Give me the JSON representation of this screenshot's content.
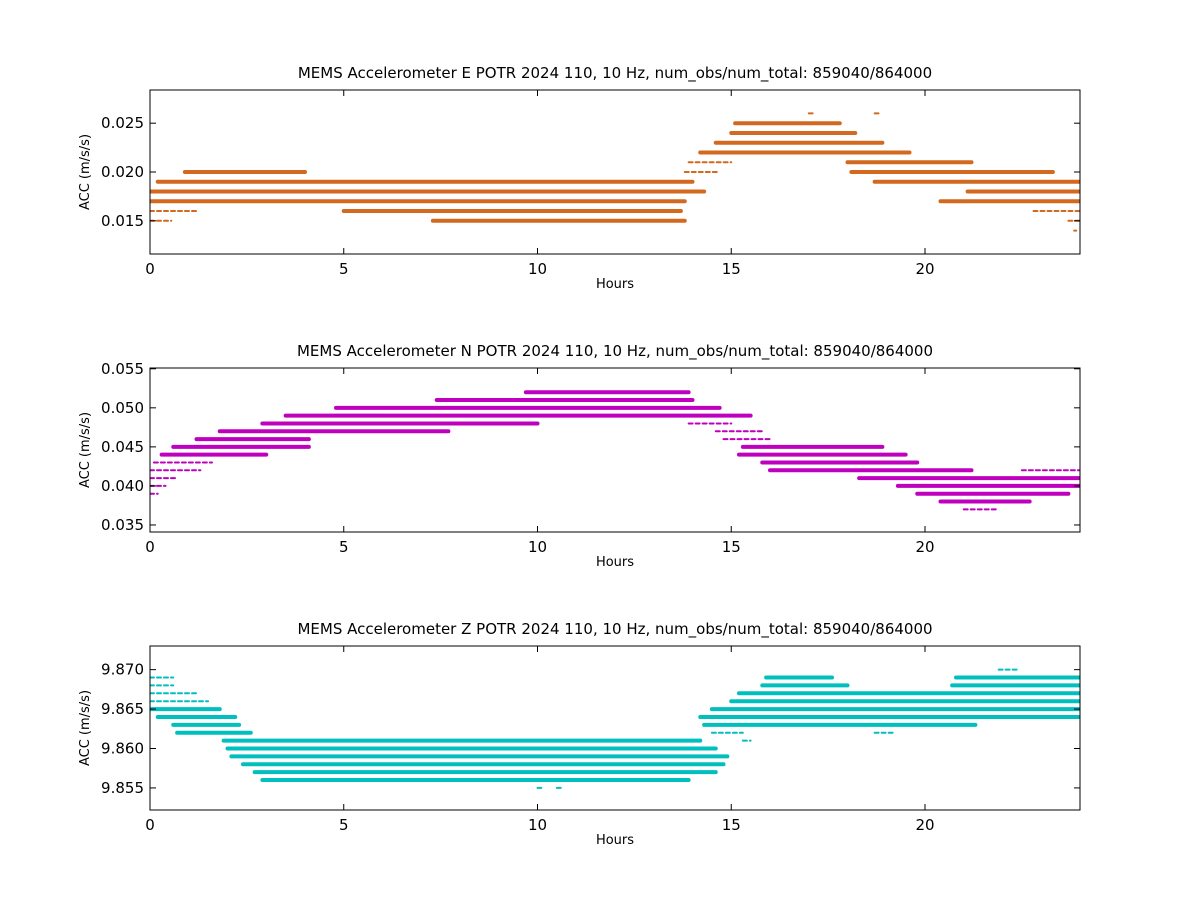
{
  "chart_data": [
    {
      "type": "scatter",
      "title": "MEMS Accelerometer E POTR 2024 110, 10 Hz, num_obs/num_total: 859040/864000",
      "xlabel": "Hours",
      "ylabel": "ACC (m/s/s)",
      "xlim": [
        0,
        24
      ],
      "ylim": [
        0.0116,
        0.0284
      ],
      "xticks": [
        0,
        5,
        10,
        15,
        20
      ],
      "xtick_labels": [
        "0",
        "5",
        "10",
        "15",
        "20"
      ],
      "yticks": [
        0.015,
        0.02,
        0.025
      ],
      "ytick_labels": [
        "0.015",
        "0.020",
        "0.025"
      ],
      "color": "#d2691e",
      "grid": false,
      "bands": [
        {
          "y": 0.014,
          "segments": [
            [
              23.85,
              23.9
            ]
          ]
        },
        {
          "y": 0.015,
          "segments": [
            [
              0,
              0.55
            ],
            [
              7.3,
              13.8
            ],
            [
              23.7,
              24
            ]
          ]
        },
        {
          "y": 0.016,
          "segments": [
            [
              0,
              1.2
            ],
            [
              5,
              13.7
            ],
            [
              22.8,
              24
            ]
          ]
        },
        {
          "y": 0.017,
          "segments": [
            [
              0,
              13.8
            ],
            [
              20.4,
              24
            ]
          ]
        },
        {
          "y": 0.018,
          "segments": [
            [
              0,
              14.3
            ],
            [
              21.1,
              24
            ]
          ]
        },
        {
          "y": 0.019,
          "segments": [
            [
              0.2,
              14.0
            ],
            [
              18.7,
              24
            ]
          ]
        },
        {
          "y": 0.02,
          "segments": [
            [
              0.9,
              4.0
            ],
            [
              13.8,
              14.7
            ],
            [
              18.1,
              23.3
            ]
          ]
        },
        {
          "y": 0.021,
          "segments": [
            [
              13.9,
              15.0
            ],
            [
              18.0,
              21.2
            ]
          ]
        },
        {
          "y": 0.022,
          "segments": [
            [
              14.2,
              19.6
            ]
          ]
        },
        {
          "y": 0.023,
          "segments": [
            [
              14.6,
              18.9
            ]
          ]
        },
        {
          "y": 0.024,
          "segments": [
            [
              15.0,
              18.2
            ]
          ]
        },
        {
          "y": 0.025,
          "segments": [
            [
              15.1,
              17.8
            ]
          ]
        },
        {
          "y": 0.026,
          "segments": [
            [
              17.0,
              17.1
            ],
            [
              18.7,
              18.8
            ]
          ]
        }
      ]
    },
    {
      "type": "scatter",
      "title": "MEMS Accelerometer N POTR 2024 110, 10 Hz, num_obs/num_total: 859040/864000",
      "xlabel": "Hours",
      "ylabel": "ACC (m/s/s)",
      "xlim": [
        0,
        24
      ],
      "ylim": [
        0.0341,
        0.0551
      ],
      "xticks": [
        0,
        5,
        10,
        15,
        20
      ],
      "xtick_labels": [
        "0",
        "5",
        "10",
        "15",
        "20"
      ],
      "yticks": [
        0.035,
        0.04,
        0.045,
        0.05,
        0.055
      ],
      "ytick_labels": [
        "0.035",
        "0.040",
        "0.045",
        "0.050",
        "0.055"
      ],
      "color": "#bf00bf",
      "grid": false,
      "bands": [
        {
          "y": 0.037,
          "segments": [
            [
              21.0,
              21.9
            ]
          ]
        },
        {
          "y": 0.038,
          "segments": [
            [
              20.4,
              22.7
            ]
          ]
        },
        {
          "y": 0.039,
          "segments": [
            [
              0,
              0.2
            ],
            [
              19.8,
              23.7
            ]
          ]
        },
        {
          "y": 0.04,
          "segments": [
            [
              0,
              0.4
            ],
            [
              19.3,
              24
            ]
          ]
        },
        {
          "y": 0.041,
          "segments": [
            [
              0,
              0.7
            ],
            [
              18.3,
              24
            ]
          ]
        },
        {
          "y": 0.042,
          "segments": [
            [
              0,
              1.3
            ],
            [
              16.0,
              21.2
            ],
            [
              22.5,
              24
            ]
          ]
        },
        {
          "y": 0.043,
          "segments": [
            [
              0.1,
              1.6
            ],
            [
              15.8,
              19.8
            ]
          ]
        },
        {
          "y": 0.044,
          "segments": [
            [
              0.3,
              3.0
            ],
            [
              15.2,
              19.5
            ]
          ]
        },
        {
          "y": 0.045,
          "segments": [
            [
              0.6,
              4.1
            ],
            [
              15.3,
              18.9
            ]
          ]
        },
        {
          "y": 0.046,
          "segments": [
            [
              1.2,
              4.1
            ],
            [
              14.8,
              16.0
            ]
          ]
        },
        {
          "y": 0.047,
          "segments": [
            [
              1.8,
              7.7
            ],
            [
              14.6,
              15.8
            ]
          ]
        },
        {
          "y": 0.048,
          "segments": [
            [
              2.9,
              10.0
            ],
            [
              13.9,
              15.0
            ]
          ]
        },
        {
          "y": 0.049,
          "segments": [
            [
              3.5,
              15.5
            ]
          ]
        },
        {
          "y": 0.05,
          "segments": [
            [
              4.8,
              14.7
            ]
          ]
        },
        {
          "y": 0.051,
          "segments": [
            [
              7.4,
              14.0
            ]
          ]
        },
        {
          "y": 0.052,
          "segments": [
            [
              9.7,
              13.9
            ]
          ]
        }
      ]
    },
    {
      "type": "scatter",
      "title": "MEMS Accelerometer Z POTR 2024 110, 10 Hz, num_obs/num_total: 859040/864000",
      "xlabel": "Hours",
      "ylabel": "ACC (m/s/s)",
      "xlim": [
        0,
        24
      ],
      "ylim": [
        9.8522,
        9.873
      ],
      "xticks": [
        0,
        5,
        10,
        15,
        20
      ],
      "xtick_labels": [
        "0",
        "5",
        "10",
        "15",
        "20"
      ],
      "yticks": [
        9.855,
        9.86,
        9.865,
        9.87
      ],
      "ytick_labels": [
        "9.855",
        "9.860",
        "9.865",
        "9.870"
      ],
      "color": "#00bfbf",
      "grid": false,
      "bands": [
        {
          "y": 9.855,
          "segments": [
            [
              10.0,
              10.1
            ],
            [
              10.5,
              10.6
            ]
          ]
        },
        {
          "y": 9.856,
          "segments": [
            [
              2.9,
              13.9
            ]
          ]
        },
        {
          "y": 9.857,
          "segments": [
            [
              2.7,
              14.6
            ]
          ]
        },
        {
          "y": 9.858,
          "segments": [
            [
              2.4,
              14.8
            ]
          ]
        },
        {
          "y": 9.859,
          "segments": [
            [
              2.1,
              14.9
            ]
          ]
        },
        {
          "y": 9.86,
          "segments": [
            [
              2.0,
              14.6
            ]
          ]
        },
        {
          "y": 9.861,
          "segments": [
            [
              1.9,
              14.2
            ],
            [
              15.3,
              15.5
            ]
          ]
        },
        {
          "y": 9.862,
          "segments": [
            [
              0.7,
              2.6
            ],
            [
              14.5,
              15.3
            ],
            [
              18.7,
              19.2
            ]
          ]
        },
        {
          "y": 9.863,
          "segments": [
            [
              0.6,
              2.3
            ],
            [
              14.3,
              21.3
            ]
          ]
        },
        {
          "y": 9.864,
          "segments": [
            [
              0.2,
              2.2
            ],
            [
              14.2,
              24
            ]
          ]
        },
        {
          "y": 9.865,
          "segments": [
            [
              0.0,
              1.8
            ],
            [
              14.5,
              24
            ]
          ]
        },
        {
          "y": 9.866,
          "segments": [
            [
              0.0,
              1.5
            ],
            [
              15.0,
              24
            ]
          ]
        },
        {
          "y": 9.867,
          "segments": [
            [
              0.0,
              1.2
            ],
            [
              15.2,
              24
            ]
          ]
        },
        {
          "y": 9.868,
          "segments": [
            [
              0.0,
              0.6
            ],
            [
              15.8,
              18.0
            ],
            [
              20.7,
              24
            ]
          ]
        },
        {
          "y": 9.869,
          "segments": [
            [
              0.0,
              0.6
            ],
            [
              15.9,
              17.6
            ],
            [
              20.8,
              24
            ]
          ]
        },
        {
          "y": 9.87,
          "segments": [
            [
              21.9,
              22.4
            ]
          ]
        }
      ]
    }
  ]
}
